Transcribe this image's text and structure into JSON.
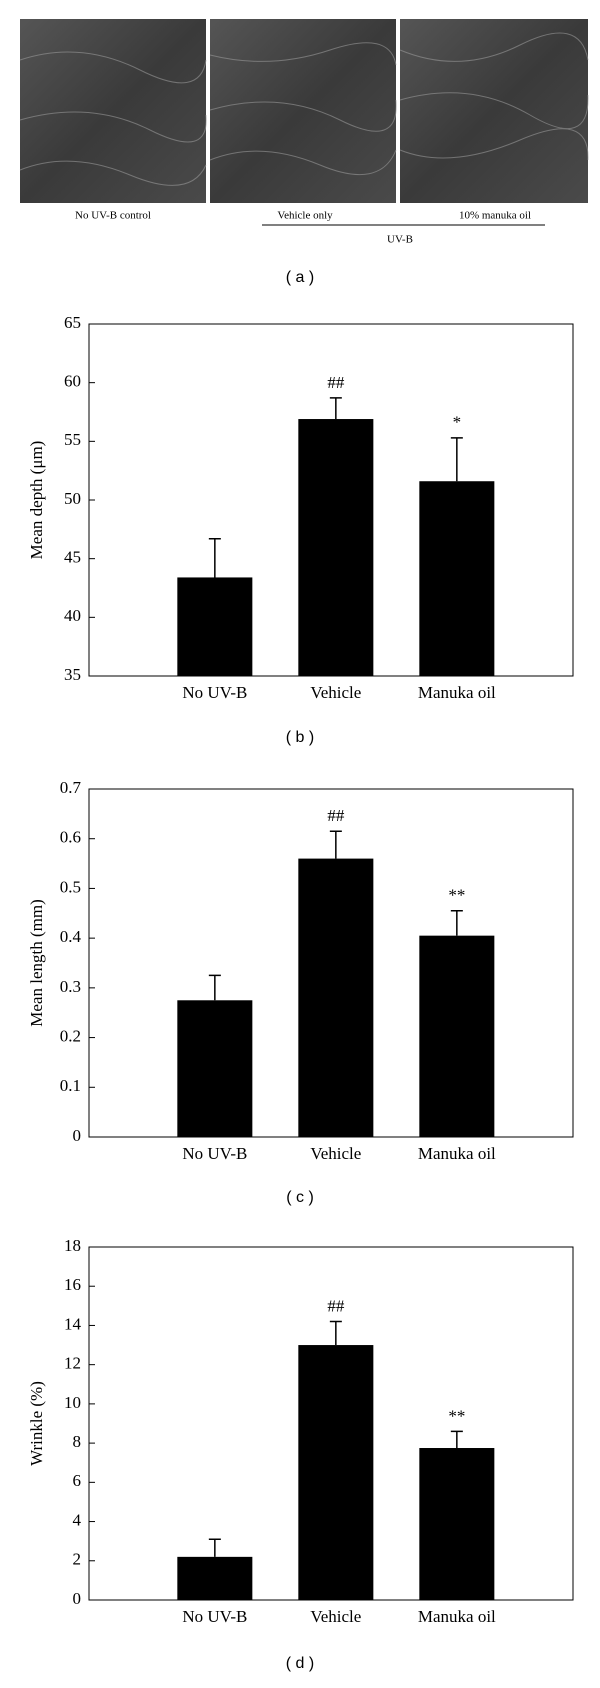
{
  "photos": {
    "labels": [
      "No UV-B control",
      "Vehicle only",
      "10% manuka oil"
    ],
    "group_label": "UV-B",
    "panel_label": "( a )"
  },
  "chart_data": [
    {
      "type": "bar",
      "panel_label": "( b )",
      "ylabel": "Mean depth (μm)",
      "categories": [
        "No UV-B",
        "Vehicle",
        "Manuka oil"
      ],
      "values": [
        43.4,
        56.9,
        51.6
      ],
      "errors": [
        3.3,
        1.8,
        3.7
      ],
      "annotations": [
        null,
        "##",
        "*"
      ],
      "color": "#000000",
      "ylim": [
        35,
        65
      ],
      "yticks": [
        35,
        40,
        45,
        50,
        55,
        60,
        65
      ]
    },
    {
      "type": "bar",
      "panel_label": "( c )",
      "ylabel": "Mean length (mm)",
      "categories": [
        "No UV-B",
        "Vehicle",
        "Manuka oil"
      ],
      "values": [
        0.275,
        0.56,
        0.405
      ],
      "errors": [
        0.05,
        0.055,
        0.05
      ],
      "annotations": [
        null,
        "##",
        "**"
      ],
      "color": "#000000",
      "ylim": [
        0,
        0.7
      ],
      "yticks": [
        0,
        0.1,
        0.2,
        0.3,
        0.4,
        0.5,
        0.6,
        0.7
      ]
    },
    {
      "type": "bar",
      "panel_label": "( d )",
      "ylabel": "Wrinkle (%)",
      "categories": [
        "No UV-B",
        "Vehicle",
        "Manuka oil"
      ],
      "values": [
        2.2,
        13.0,
        7.75
      ],
      "errors": [
        0.9,
        1.2,
        0.85
      ],
      "annotations": [
        null,
        "##",
        "**"
      ],
      "color": "#000000",
      "ylim": [
        0,
        18
      ],
      "yticks": [
        0,
        2,
        4,
        6,
        8,
        10,
        12,
        14,
        16,
        18
      ]
    }
  ]
}
